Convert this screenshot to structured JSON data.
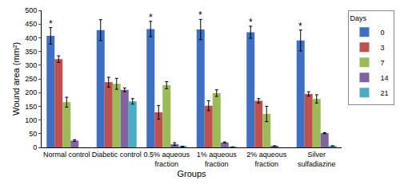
{
  "chart_data": {
    "type": "bar",
    "x_label": "Groups",
    "y_label": "Wound area (mm²)",
    "legend_title": "Days",
    "legend": "right",
    "grid": false,
    "categories": [
      "Normal control",
      "Diabetic control",
      "0.5% aqueous fraction",
      "1% aqueous fraction",
      "2% aqueous fraction",
      "Silver sulfadiazine"
    ],
    "series": [
      {
        "name": "0",
        "color": "#3d6fc2",
        "values": [
          407,
          428,
          432,
          430,
          420,
          390
        ],
        "errors": [
          30,
          38,
          28,
          37,
          22,
          38
        ]
      },
      {
        "name": "3",
        "color": "#c0504d",
        "values": [
          322,
          238,
          128,
          152,
          170,
          195
        ],
        "errors": [
          12,
          18,
          25,
          18,
          8,
          8
        ]
      },
      {
        "name": "7",
        "color": "#9bbb59",
        "values": [
          165,
          232,
          227,
          198,
          122,
          177
        ],
        "errors": [
          18,
          20,
          13,
          12,
          28,
          15
        ]
      },
      {
        "name": "14",
        "color": "#8064a2",
        "values": [
          25,
          210,
          12,
          18,
          5,
          52
        ],
        "errors": [
          3,
          7,
          5,
          2,
          1,
          2
        ]
      },
      {
        "name": "21",
        "color": "#4bacc6",
        "values": [
          null,
          168,
          3,
          1,
          null,
          5
        ],
        "errors": [
          null,
          10,
          1,
          1,
          null,
          1
        ]
      }
    ],
    "ylim": [
      0,
      500
    ],
    "yticks": [
      0,
      50,
      100,
      150,
      200,
      250,
      300,
      350,
      400,
      450,
      500
    ],
    "annotations": [
      {
        "text": "*",
        "category": "Normal control",
        "series": "0"
      },
      {
        "text": "*",
        "category": "0.5% aqueous fraction",
        "series": "0"
      },
      {
        "text": "*",
        "category": "1% aqueous fraction",
        "series": "0"
      },
      {
        "text": "*",
        "category": "2% aqueous fraction",
        "series": "0"
      },
      {
        "text": "*",
        "category": "Silver sulfadiazine",
        "series": "0"
      }
    ]
  }
}
